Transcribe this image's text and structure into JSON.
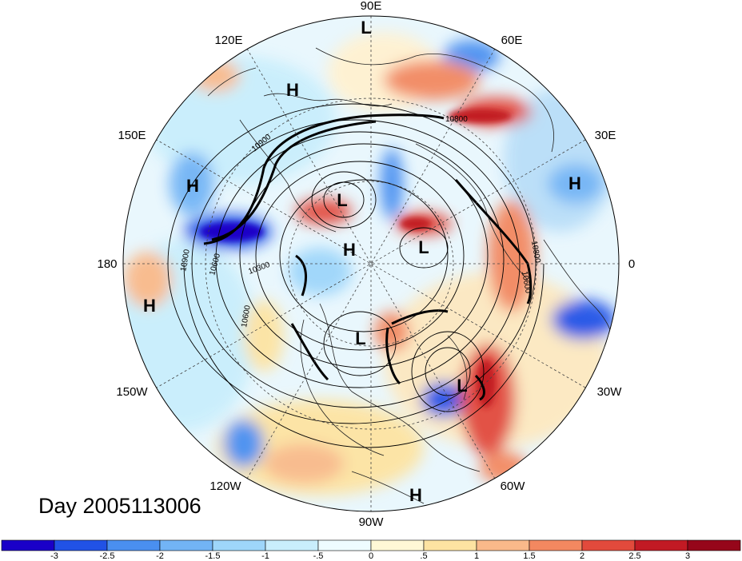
{
  "title": "Day 2005113006",
  "longitude_labels": [
    "90E",
    "60E",
    "30E",
    "0",
    "30W",
    "60W",
    "90W",
    "120W",
    "150W",
    "180",
    "150E",
    "120E"
  ],
  "pressure_centers": [
    {
      "type": "L",
      "lon": "90E"
    },
    {
      "type": "H",
      "lon": "120E"
    },
    {
      "type": "H",
      "lon": "150E"
    },
    {
      "type": "L",
      "lon": "~95E"
    },
    {
      "type": "H",
      "lon": "~90E"
    },
    {
      "type": "L",
      "lon": "~35E"
    },
    {
      "type": "H",
      "lon": "30E"
    },
    {
      "type": "H",
      "lon": "170W"
    },
    {
      "type": "L",
      "lon": "~95W"
    },
    {
      "type": "L",
      "lon": "40W"
    },
    {
      "type": "H",
      "lon": "80W"
    }
  ],
  "contour_labels": [
    "10900",
    "10800",
    "10600",
    "10300",
    "10900",
    "10600",
    "10600",
    "10800"
  ],
  "colorbar": {
    "ticks": [
      "-3",
      "-2.5",
      "-2",
      "-1.5",
      "-1",
      "-.5",
      "0",
      ".5",
      "1",
      "1.5",
      "2",
      "2.5",
      "3"
    ],
    "colors": [
      "#1a00c8",
      "#2152e6",
      "#4a8ff0",
      "#72b4f5",
      "#9ed6fa",
      "#c9eefc",
      "#eefcff",
      "#fff8d6",
      "#fde3a2",
      "#f9b98a",
      "#f38860",
      "#e24a3c",
      "#c21a24",
      "#96061a"
    ]
  },
  "shading_colors": {
    "neg_strong": "#2152e6",
    "neg_mid": "#72b4f5",
    "neg_weak": "#c9eefc",
    "pos_weak": "#fde3a2",
    "pos_mid": "#f38860",
    "pos_strong": "#c21a24",
    "coast": "#222222",
    "contour": "#000000",
    "grid": "#444444"
  }
}
